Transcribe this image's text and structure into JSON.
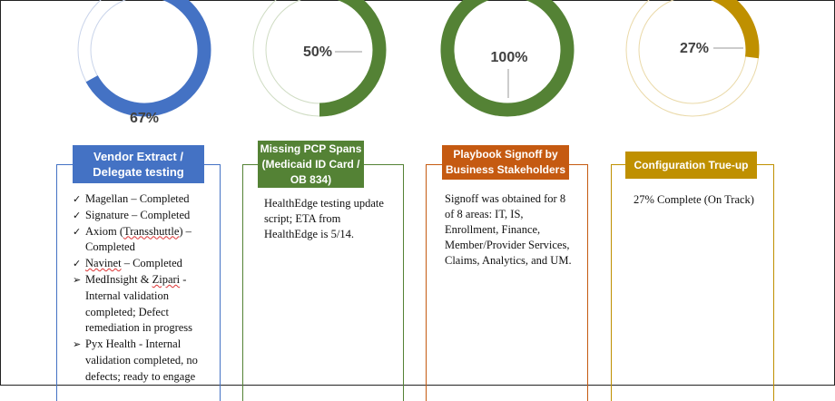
{
  "colors": {
    "blue": "#4472C4",
    "green": "#548235",
    "orange": "#C55A11",
    "gold": "#BF9000"
  },
  "donuts": [
    {
      "percent": 67,
      "label": "67%",
      "color": "#4472C4"
    },
    {
      "percent": 50,
      "label": "50%",
      "color": "#548235"
    },
    {
      "percent": 100,
      "label": "100%",
      "color": "#548235"
    },
    {
      "percent": 27,
      "label": "27%",
      "color": "#BF9000"
    }
  ],
  "columns": [
    {
      "header_lines": [
        "Vendor Extract /",
        "Delegate testing"
      ],
      "items": [
        {
          "mark": "✓",
          "parts": [
            [
              "Magellan – Completed",
              false
            ]
          ]
        },
        {
          "mark": "✓",
          "parts": [
            [
              "Signature – Completed",
              false
            ]
          ]
        },
        {
          "mark": "✓",
          "parts": [
            [
              "Axiom (",
              false
            ],
            [
              "Transshuttle",
              true
            ],
            [
              ") – Completed",
              false
            ]
          ]
        },
        {
          "mark": "✓",
          "parts": [
            [
              "Navinet",
              true
            ],
            [
              " – Completed",
              false
            ]
          ]
        },
        {
          "mark": "➢",
          "parts": [
            [
              "MedInsight & ",
              false
            ],
            [
              "Zipari",
              true
            ],
            [
              " - Internal validation completed; Defect remediation in progress",
              false
            ]
          ]
        },
        {
          "mark": "➢",
          "parts": [
            [
              "Pyx Health - Internal validation completed, no defects; ready to engage",
              false
            ]
          ]
        }
      ]
    },
    {
      "header_lines": [
        "Missing PCP Spans",
        "(Medicaid ID Card /",
        "OB 834)"
      ],
      "text": "HealthEdge testing update script; ETA from HealthEdge is 5/14."
    },
    {
      "header_lines": [
        "Playbook Signoff by",
        "Business Stakeholders"
      ],
      "text": "Signoff was obtained for 8 of 8 areas: IT, IS, Enrollment, Finance, Member/Provider Services, Claims, Analytics, and UM."
    },
    {
      "header_lines": [
        "Configuration True-up"
      ],
      "text": "27% Complete (On Track)"
    }
  ]
}
